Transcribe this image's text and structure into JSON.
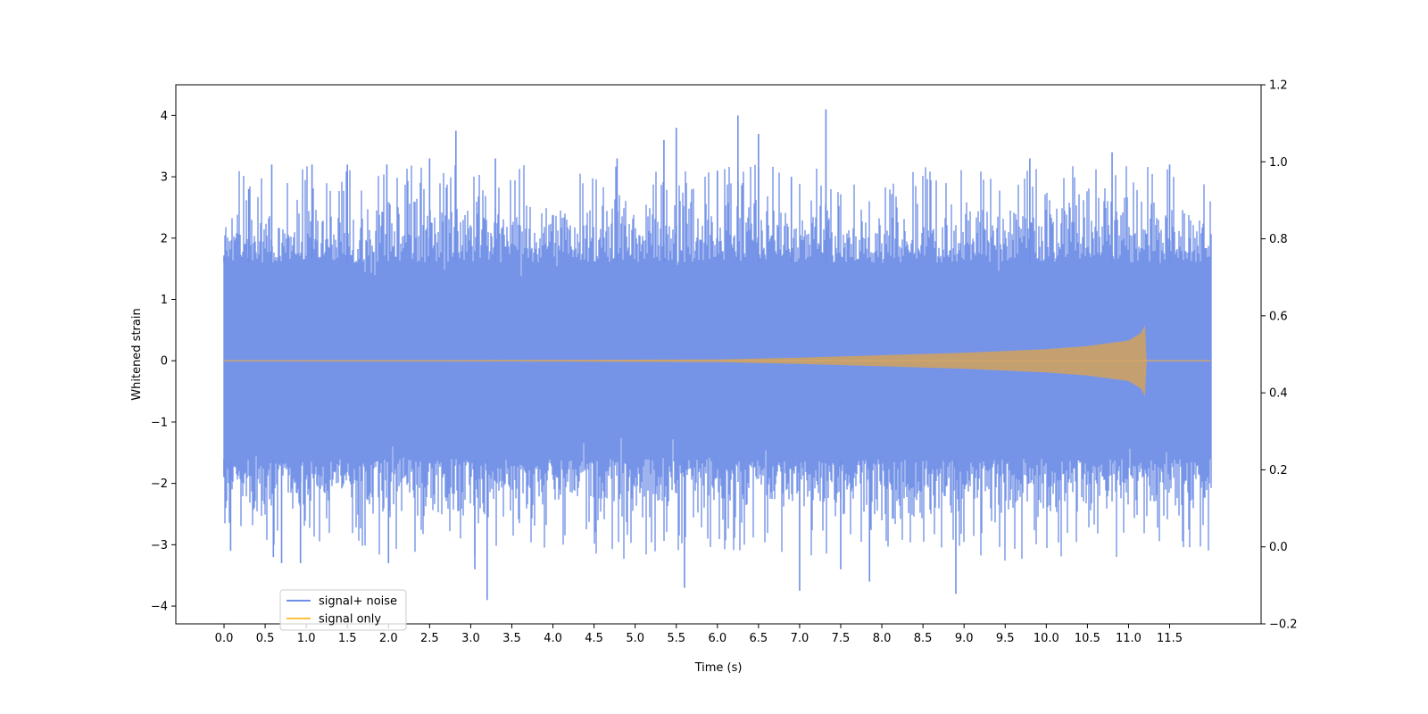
{
  "chart_data": {
    "type": "line",
    "xlabel": "Time (s)",
    "ylabel": "Whitened strain",
    "xlim": [
      -0.5863,
      12.6124
    ],
    "ylim": [
      -4.29,
      4.5
    ],
    "y2lim": [
      -0.2,
      1.2
    ],
    "x_ticks": [
      0.0,
      0.5,
      1.0,
      1.5,
      2.0,
      2.5,
      3.0,
      3.5,
      4.0,
      4.5,
      5.0,
      5.5,
      6.0,
      6.5,
      7.0,
      7.5,
      8.0,
      8.5,
      9.0,
      9.5,
      10.0,
      10.5,
      11.0,
      11.5
    ],
    "x_tick_labels": [
      "0.0",
      "0.5",
      "1.0",
      "1.5",
      "2.0",
      "2.5",
      "3.0",
      "3.5",
      "4.0",
      "4.5",
      "5.0",
      "5.5",
      "6.0",
      "6.5",
      "7.0",
      "7.5",
      "8.0",
      "8.5",
      "9.0",
      "9.5",
      "10.0",
      "10.5",
      "11.0",
      "11.5"
    ],
    "y_ticks": [
      -4,
      -3,
      -2,
      -1,
      0,
      1,
      2,
      3,
      4
    ],
    "y_tick_labels": [
      "−4",
      "−3",
      "−2",
      "−1",
      "0",
      "1",
      "2",
      "3",
      "4"
    ],
    "y2_ticks": [
      -0.2,
      0.0,
      0.2,
      0.4,
      0.6,
      0.8,
      1.0,
      1.2
    ],
    "y2_tick_labels": [
      "−0.2",
      "0.0",
      "0.2",
      "0.4",
      "0.6",
      "0.8",
      "1.0",
      "1.2"
    ],
    "legend_position": "lower-left",
    "grid": false,
    "series": [
      {
        "name": "signal+ noise",
        "color": "#6f8ee6",
        "kind": "noise_envelope",
        "x_range": [
          0.0,
          12.0
        ],
        "band": [
          -1.6,
          1.6
        ],
        "typical_extremes": [
          -2.3,
          2.3
        ],
        "spikes": [
          {
            "x": 0.0,
            "y": 1.7
          },
          {
            "x": 0.0,
            "y": -1.9
          },
          {
            "x": 0.08,
            "y": -3.1
          },
          {
            "x": 0.3,
            "y": 2.8
          },
          {
            "x": 0.58,
            "y": 3.2
          },
          {
            "x": 0.6,
            "y": -3.2
          },
          {
            "x": 0.7,
            "y": -3.3
          },
          {
            "x": 0.93,
            "y": -3.3
          },
          {
            "x": 1.07,
            "y": 3.2
          },
          {
            "x": 1.5,
            "y": 3.2
          },
          {
            "x": 1.98,
            "y": 3.2
          },
          {
            "x": 2.0,
            "y": -3.3
          },
          {
            "x": 2.5,
            "y": 3.3
          },
          {
            "x": 2.82,
            "y": 3.75
          },
          {
            "x": 3.05,
            "y": -3.4
          },
          {
            "x": 3.2,
            "y": -3.9
          },
          {
            "x": 3.3,
            "y": 3.3
          },
          {
            "x": 4.78,
            "y": 3.3
          },
          {
            "x": 5.35,
            "y": 3.6
          },
          {
            "x": 5.5,
            "y": 3.8
          },
          {
            "x": 5.6,
            "y": -3.7
          },
          {
            "x": 6.0,
            "y": 3.1
          },
          {
            "x": 6.25,
            "y": 4.0
          },
          {
            "x": 6.5,
            "y": 3.7
          },
          {
            "x": 6.9,
            "y": 3.0
          },
          {
            "x": 7.0,
            "y": -3.75
          },
          {
            "x": 7.32,
            "y": 4.1
          },
          {
            "x": 7.5,
            "y": -3.4
          },
          {
            "x": 7.85,
            "y": -3.6
          },
          {
            "x": 8.9,
            "y": -3.8
          },
          {
            "x": 9.8,
            "y": 3.3
          },
          {
            "x": 10.8,
            "y": 3.4
          },
          {
            "x": 11.5,
            "y": 3.2
          }
        ],
        "end_value": 2.8
      },
      {
        "name": "signal only",
        "color": "#ffbf40",
        "kind": "chirp_envelope",
        "x_range": [
          0.0,
          12.0
        ],
        "amplitude": [
          {
            "x": 0.0,
            "y": 0.0
          },
          {
            "x": 6.0,
            "y": 0.02
          },
          {
            "x": 7.0,
            "y": 0.05
          },
          {
            "x": 8.0,
            "y": 0.09
          },
          {
            "x": 9.0,
            "y": 0.13
          },
          {
            "x": 10.0,
            "y": 0.19
          },
          {
            "x": 10.5,
            "y": 0.24
          },
          {
            "x": 11.0,
            "y": 0.33
          },
          {
            "x": 11.15,
            "y": 0.45
          },
          {
            "x": 11.2,
            "y": 0.58
          },
          {
            "x": 11.22,
            "y": 0.0
          },
          {
            "x": 12.0,
            "y": 0.0
          }
        ]
      }
    ]
  }
}
